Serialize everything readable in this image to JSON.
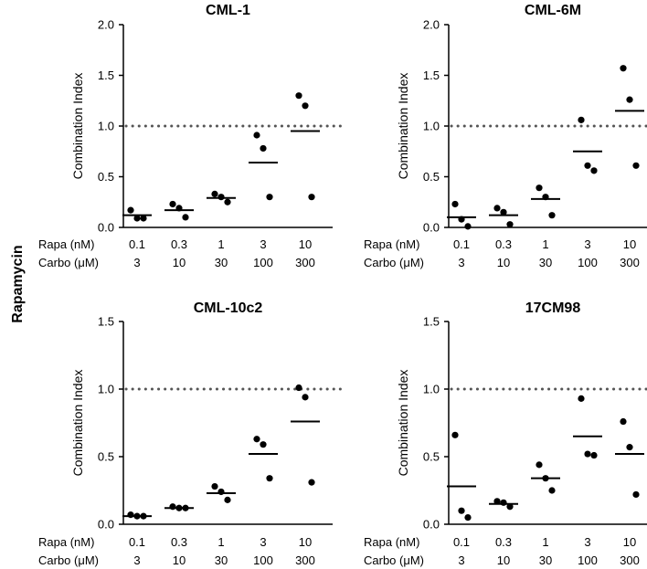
{
  "figure_label": "Rapamycin",
  "chart_data": [
    {
      "type": "scatter",
      "title": "CML-1",
      "ylabel": "Combination Index",
      "ylim": [
        0,
        2.0
      ],
      "yticks": [
        "0.0",
        "0.5",
        "1.0",
        "1.5",
        "2.0"
      ],
      "reference_line": 1.0,
      "x_rows": [
        {
          "label": "Rapa (nM)",
          "values": [
            "0.1",
            "0.3",
            "1",
            "3",
            "10"
          ]
        },
        {
          "label": "Carbo (μM)",
          "values": [
            "3",
            "10",
            "30",
            "100",
            "300"
          ]
        }
      ],
      "points": [
        [
          0.17,
          0.09,
          0.09
        ],
        [
          0.23,
          0.19,
          0.1
        ],
        [
          0.33,
          0.3,
          0.25
        ],
        [
          0.91,
          0.78,
          0.3
        ],
        [
          1.3,
          1.2,
          0.3
        ]
      ],
      "means": [
        0.12,
        0.17,
        0.29,
        0.64,
        0.95
      ]
    },
    {
      "type": "scatter",
      "title": "CML-6M",
      "ylabel": "Combination Index",
      "ylim": [
        0,
        2.0
      ],
      "yticks": [
        "0.0",
        "0.5",
        "1.0",
        "1.5",
        "2.0"
      ],
      "reference_line": 1.0,
      "x_rows": [
        {
          "label": "Rapa (nM)",
          "values": [
            "0.1",
            "0.3",
            "1",
            "3",
            "10"
          ]
        },
        {
          "label": "Carbo (μM)",
          "values": [
            "3",
            "10",
            "30",
            "100",
            "300"
          ]
        }
      ],
      "points": [
        [
          0.23,
          0.08,
          0.01
        ],
        [
          0.19,
          0.15,
          0.03
        ],
        [
          0.39,
          0.3,
          0.12
        ],
        [
          1.06,
          0.61,
          0.56
        ],
        [
          1.57,
          1.26,
          0.61
        ]
      ],
      "means": [
        0.1,
        0.12,
        0.28,
        0.75,
        1.15
      ]
    },
    {
      "type": "scatter",
      "title": "CML-10c2",
      "ylabel": "Combination Index",
      "ylim": [
        0,
        1.5
      ],
      "yticks": [
        "0.0",
        "0.5",
        "1.0",
        "1.5"
      ],
      "reference_line": 1.0,
      "x_rows": [
        {
          "label": "Rapa (nM)",
          "values": [
            "0.1",
            "0.3",
            "1",
            "3",
            "10"
          ]
        },
        {
          "label": "Carbo (μM)",
          "values": [
            "3",
            "10",
            "30",
            "100",
            "300"
          ]
        }
      ],
      "points": [
        [
          0.07,
          0.06,
          0.06
        ],
        [
          0.13,
          0.12,
          0.12
        ],
        [
          0.28,
          0.24,
          0.18
        ],
        [
          0.63,
          0.59,
          0.34
        ],
        [
          1.01,
          0.94,
          0.31
        ]
      ],
      "means": [
        0.06,
        0.12,
        0.23,
        0.52,
        0.76
      ]
    },
    {
      "type": "scatter",
      "title": "17CM98",
      "ylabel": "Combination Index",
      "ylim": [
        0,
        1.5
      ],
      "yticks": [
        "0.0",
        "0.5",
        "1.0",
        "1.5"
      ],
      "reference_line": 1.0,
      "x_rows": [
        {
          "label": "Rapa (nM)",
          "values": [
            "0.1",
            "0.3",
            "1",
            "3",
            "10"
          ]
        },
        {
          "label": "Carbo (μM)",
          "values": [
            "3",
            "10",
            "30",
            "100",
            "300"
          ]
        }
      ],
      "points": [
        [
          0.66,
          0.1,
          0.05
        ],
        [
          0.17,
          0.16,
          0.13
        ],
        [
          0.44,
          0.34,
          0.25
        ],
        [
          0.93,
          0.52,
          0.51
        ],
        [
          0.76,
          0.57,
          0.22
        ]
      ],
      "means": [
        0.28,
        0.15,
        0.34,
        0.65,
        0.52
      ]
    }
  ]
}
